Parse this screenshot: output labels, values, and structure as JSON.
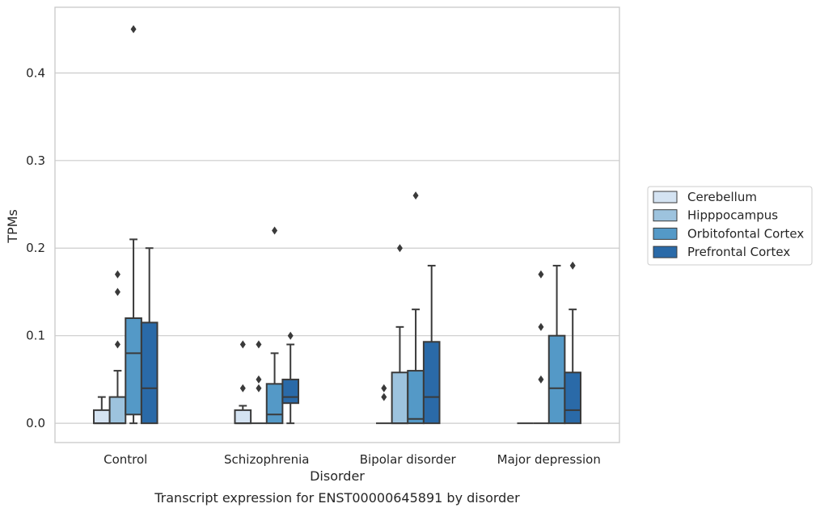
{
  "chart_data": {
    "type": "box",
    "title": "Transcript expression for ENST00000645891 by disorder",
    "xlabel": "Disorder",
    "ylabel": "TPMs",
    "ylim": [
      -0.022,
      0.475
    ],
    "yticks": [
      0.0,
      0.1,
      0.2,
      0.3,
      0.4
    ],
    "ytick_labels": [
      "0.0",
      "0.1",
      "0.2",
      "0.3",
      "0.4"
    ],
    "grid": "horizontal",
    "legend_position": "right",
    "categories": [
      "Control",
      "Schizophrenia",
      "Bipolar disorder",
      "Major depression"
    ],
    "series": [
      {
        "name": "Cerebellum",
        "color": "#d4e3f2",
        "boxes": [
          {
            "whisker_low": 0.0,
            "q1": 0.0,
            "median": 0.0,
            "q3": 0.015,
            "whisker_high": 0.03,
            "outliers": []
          },
          {
            "whisker_low": 0.0,
            "q1": 0.0,
            "median": 0.0,
            "q3": 0.015,
            "whisker_high": 0.02,
            "outliers": [
              0.04,
              0.09
            ]
          },
          {
            "whisker_low": 0.0,
            "q1": 0.0,
            "median": 0.0,
            "q3": 0.0,
            "whisker_high": 0.0,
            "outliers": [
              0.03,
              0.04
            ]
          },
          {
            "whisker_low": 0.0,
            "q1": 0.0,
            "median": 0.0,
            "q3": 0.0,
            "whisker_high": 0.0,
            "outliers": []
          }
        ]
      },
      {
        "name": "Hipppocampus",
        "color": "#9dc3de",
        "boxes": [
          {
            "whisker_low": 0.0,
            "q1": 0.0,
            "median": 0.0,
            "q3": 0.03,
            "whisker_high": 0.06,
            "outliers": [
              0.09,
              0.15,
              0.17
            ]
          },
          {
            "whisker_low": 0.0,
            "q1": 0.0,
            "median": 0.0,
            "q3": 0.0,
            "whisker_high": 0.0,
            "outliers": [
              0.04,
              0.05,
              0.09
            ]
          },
          {
            "whisker_low": 0.0,
            "q1": 0.0,
            "median": 0.0,
            "q3": 0.058,
            "whisker_high": 0.11,
            "outliers": [
              0.2
            ]
          },
          {
            "whisker_low": 0.0,
            "q1": 0.0,
            "median": 0.0,
            "q3": 0.0,
            "whisker_high": 0.0,
            "outliers": [
              0.05,
              0.11,
              0.17
            ]
          }
        ]
      },
      {
        "name": "Orbitofontal Cortex",
        "color": "#5499c7",
        "boxes": [
          {
            "whisker_low": 0.0,
            "q1": 0.01,
            "median": 0.08,
            "q3": 0.12,
            "whisker_high": 0.21,
            "outliers": [
              0.45
            ]
          },
          {
            "whisker_low": 0.0,
            "q1": 0.0,
            "median": 0.01,
            "q3": 0.045,
            "whisker_high": 0.08,
            "outliers": [
              0.22
            ]
          },
          {
            "whisker_low": 0.0,
            "q1": 0.0,
            "median": 0.005,
            "q3": 0.06,
            "whisker_high": 0.13,
            "outliers": [
              0.26
            ]
          },
          {
            "whisker_low": 0.0,
            "q1": 0.0,
            "median": 0.04,
            "q3": 0.1,
            "whisker_high": 0.18,
            "outliers": []
          }
        ]
      },
      {
        "name": "Prefrontal Cortex",
        "color": "#2a6aa8",
        "boxes": [
          {
            "whisker_low": 0.0,
            "q1": 0.0,
            "median": 0.04,
            "q3": 0.115,
            "whisker_high": 0.2,
            "outliers": []
          },
          {
            "whisker_low": 0.0,
            "q1": 0.023,
            "median": 0.03,
            "q3": 0.05,
            "whisker_high": 0.09,
            "outliers": [
              0.1
            ]
          },
          {
            "whisker_low": 0.0,
            "q1": 0.0,
            "median": 0.03,
            "q3": 0.093,
            "whisker_high": 0.18,
            "outliers": []
          },
          {
            "whisker_low": 0.0,
            "q1": 0.0,
            "median": 0.015,
            "q3": 0.058,
            "whisker_high": 0.13,
            "outliers": [
              0.18
            ]
          }
        ]
      }
    ]
  }
}
